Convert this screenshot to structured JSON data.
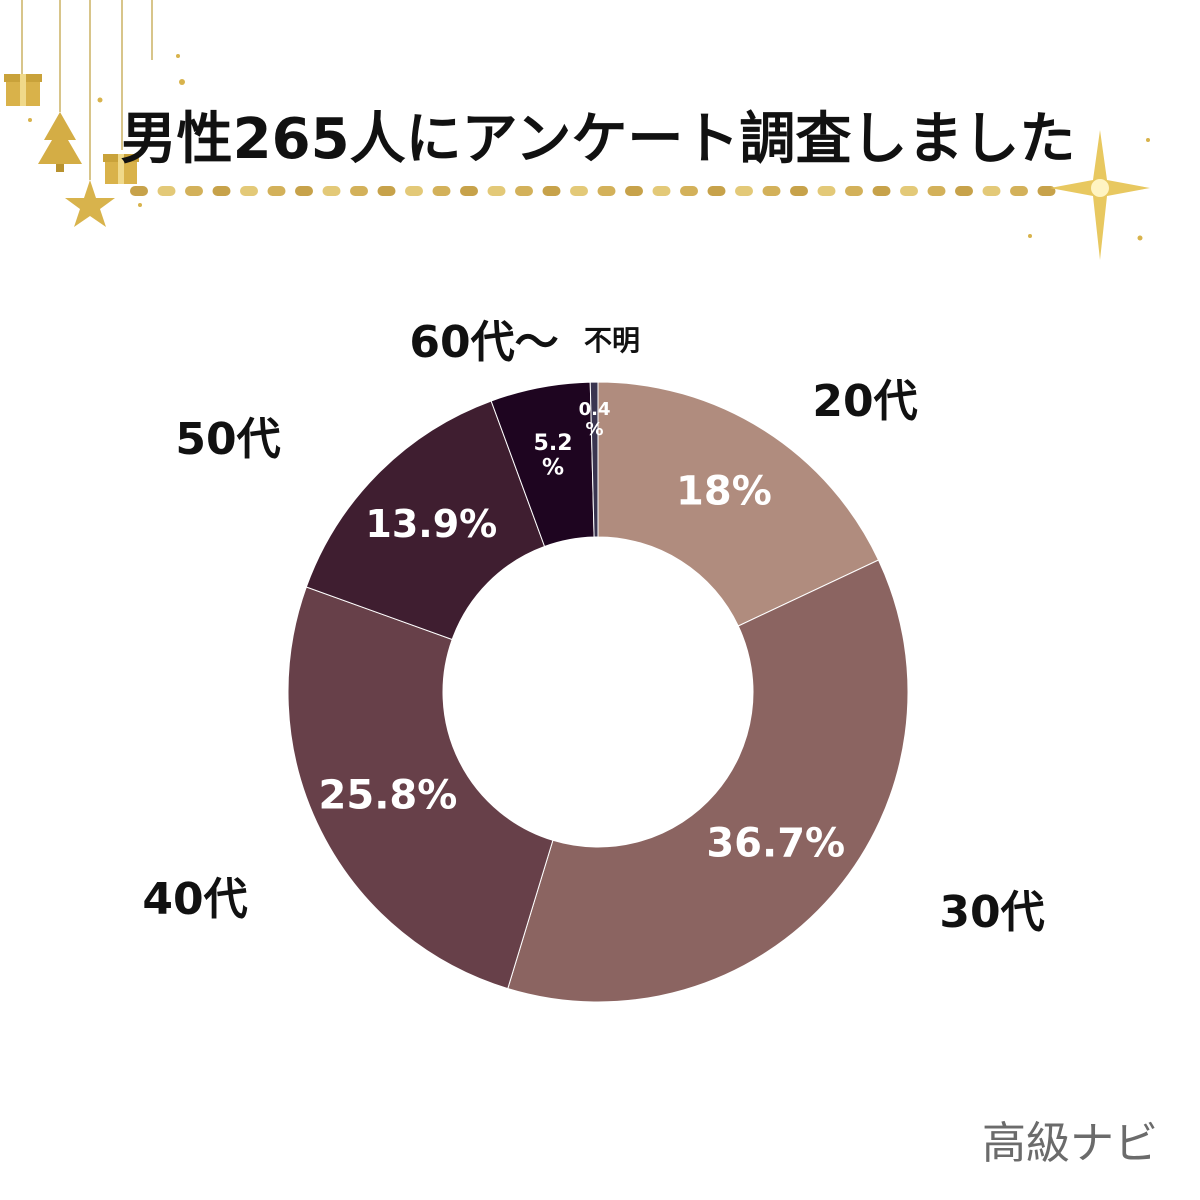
{
  "header": {
    "title": "男性265人にアンケート調査しました"
  },
  "watermark": "高級ナビ",
  "decorations": [
    "gift-icon",
    "tree-icon",
    "star-icon",
    "sparkle-icon",
    "dotted-line"
  ],
  "chart_data": {
    "type": "pie",
    "donut": true,
    "title": "男性265人にアンケート調査しました",
    "slices": [
      {
        "category": "20代",
        "label": "18%",
        "value": 18.0,
        "color": "#b08c7e"
      },
      {
        "category": "30代",
        "label": "36.7%",
        "value": 36.7,
        "color": "#8b6461"
      },
      {
        "category": "40代",
        "label": "25.8%",
        "value": 25.8,
        "color": "#674049"
      },
      {
        "category": "50代",
        "label": "13.9%",
        "value": 13.9,
        "color": "#3f1e30"
      },
      {
        "category": "60代〜",
        "label": "5.2%",
        "value": 5.2,
        "color": "#1e0520"
      },
      {
        "category": "不明",
        "label": "0.4%",
        "value": 0.4,
        "color": "#3a3550"
      }
    ]
  }
}
